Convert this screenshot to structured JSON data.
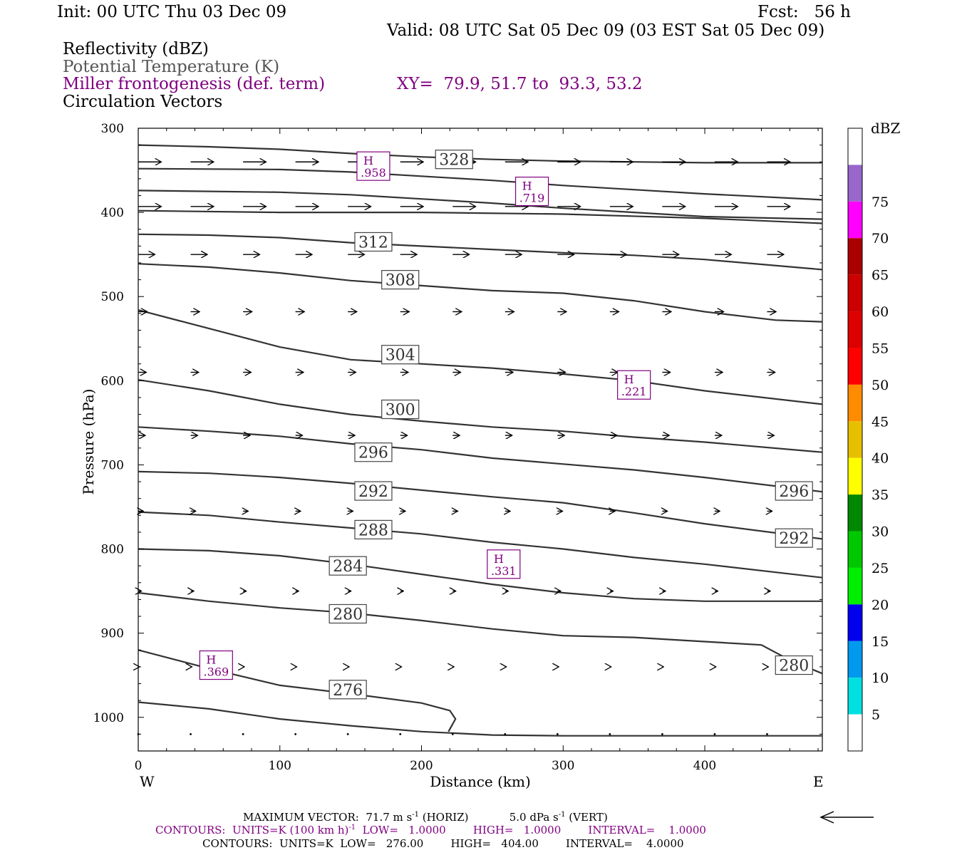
{
  "header": {
    "init": "Init: 00 UTC Thu 03 Dec 09",
    "fcst": "Fcst:   56 h",
    "valid": "Valid: 08 UTC Sat 05 Dec 09 (03 EST Sat 05 Dec 09)",
    "field1": "Reflectivity (dBZ)",
    "field2": "Potential Temperature (K)",
    "field3": "Miller frontogenesis (def. term)",
    "xy": "XY=  79.9, 51.7 to  93.3, 53.2",
    "field4": "Circulation Vectors"
  },
  "colors": {
    "field3": "#800080",
    "field2": "#555555",
    "contour": "#333333",
    "hmarker": "#800080"
  },
  "chart_data": {
    "type": "cross-section",
    "xlabel": "Distance (km)",
    "ylabel": "Pressure (hPa)",
    "xlim": [
      0,
      483
    ],
    "ylim": [
      300,
      1040
    ],
    "xticks": [
      0,
      100,
      200,
      300,
      400
    ],
    "yticks": [
      300,
      400,
      500,
      600,
      700,
      800,
      900,
      1000
    ],
    "x_end_left": "W",
    "x_end_right": "E",
    "theta_contours": [
      {
        "value": 276,
        "points": [
          [
            0,
            920
          ],
          [
            50,
            942
          ],
          [
            100,
            962
          ],
          [
            150,
            972
          ],
          [
            200,
            983
          ],
          [
            220,
            992
          ],
          [
            224,
            1002
          ],
          [
            219,
            1017
          ]
        ]
      },
      {
        "value": 276,
        "points": [
          [
            0,
            982
          ],
          [
            50,
            990
          ],
          [
            100,
            1002
          ],
          [
            150,
            1010
          ],
          [
            200,
            1017
          ],
          [
            250,
            1021
          ],
          [
            300,
            1022
          ],
          [
            400,
            1022
          ],
          [
            483,
            1022
          ]
        ]
      },
      {
        "value": 280,
        "points": [
          [
            0,
            852
          ],
          [
            50,
            862
          ],
          [
            100,
            870
          ],
          [
            150,
            876
          ],
          [
            200,
            885
          ],
          [
            250,
            895
          ],
          [
            300,
            903
          ],
          [
            350,
            905
          ],
          [
            400,
            910
          ],
          [
            440,
            914
          ],
          [
            460,
            932
          ],
          [
            483,
            948
          ]
        ]
      },
      {
        "value": 284,
        "points": [
          [
            0,
            800
          ],
          [
            50,
            802
          ],
          [
            100,
            808
          ],
          [
            150,
            818
          ],
          [
            200,
            830
          ],
          [
            250,
            842
          ],
          [
            300,
            852
          ],
          [
            350,
            859
          ],
          [
            400,
            862
          ],
          [
            483,
            862
          ]
        ]
      },
      {
        "value": 288,
        "points": [
          [
            0,
            756
          ],
          [
            50,
            760
          ],
          [
            100,
            768
          ],
          [
            150,
            775
          ],
          [
            200,
            782
          ],
          [
            250,
            792
          ],
          [
            300,
            800
          ],
          [
            350,
            810
          ],
          [
            400,
            818
          ],
          [
            483,
            834
          ]
        ]
      },
      {
        "value": 292,
        "points": [
          [
            0,
            708
          ],
          [
            50,
            710
          ],
          [
            100,
            715
          ],
          [
            150,
            722
          ],
          [
            200,
            730
          ],
          [
            250,
            738
          ],
          [
            300,
            745
          ],
          [
            350,
            757
          ],
          [
            400,
            770
          ],
          [
            483,
            788
          ]
        ]
      },
      {
        "value": 296,
        "points": [
          [
            0,
            655
          ],
          [
            50,
            660
          ],
          [
            100,
            666
          ],
          [
            150,
            675
          ],
          [
            200,
            682
          ],
          [
            250,
            692
          ],
          [
            300,
            699
          ],
          [
            350,
            706
          ],
          [
            400,
            715
          ],
          [
            483,
            732
          ]
        ]
      },
      {
        "value": 300,
        "points": [
          [
            0,
            599
          ],
          [
            50,
            612
          ],
          [
            100,
            628
          ],
          [
            150,
            640
          ],
          [
            200,
            648
          ],
          [
            250,
            655
          ],
          [
            300,
            660
          ],
          [
            350,
            667
          ],
          [
            400,
            673
          ],
          [
            483,
            685
          ]
        ]
      },
      {
        "value": 304,
        "points": [
          [
            0,
            516
          ],
          [
            50,
            538
          ],
          [
            100,
            560
          ],
          [
            150,
            575
          ],
          [
            200,
            580
          ],
          [
            250,
            585
          ],
          [
            300,
            592
          ],
          [
            350,
            600
          ],
          [
            400,
            612
          ],
          [
            483,
            628
          ]
        ]
      },
      {
        "value": 308,
        "points": [
          [
            0,
            461
          ],
          [
            50,
            465
          ],
          [
            100,
            472
          ],
          [
            150,
            481
          ],
          [
            200,
            487
          ],
          [
            250,
            493
          ],
          [
            300,
            496
          ],
          [
            350,
            505
          ],
          [
            400,
            518
          ],
          [
            450,
            528
          ],
          [
            483,
            530
          ]
        ]
      },
      {
        "value": 312,
        "points": [
          [
            0,
            426
          ],
          [
            50,
            427
          ],
          [
            100,
            430
          ],
          [
            150,
            436
          ],
          [
            200,
            440
          ],
          [
            250,
            444
          ],
          [
            300,
            448
          ],
          [
            350,
            451
          ],
          [
            400,
            456
          ],
          [
            483,
            468
          ]
        ]
      },
      {
        "value": 316,
        "points": [
          [
            0,
            398
          ],
          [
            100,
            400
          ],
          [
            200,
            400
          ],
          [
            300,
            402
          ],
          [
            400,
            407
          ],
          [
            483,
            413
          ]
        ]
      },
      {
        "value": 320,
        "points": [
          [
            0,
            374
          ],
          [
            100,
            376
          ],
          [
            150,
            379
          ],
          [
            200,
            384
          ],
          [
            250,
            389
          ],
          [
            300,
            395
          ],
          [
            350,
            400
          ],
          [
            400,
            405
          ],
          [
            483,
            408
          ]
        ]
      },
      {
        "value": 324,
        "points": [
          [
            0,
            348
          ],
          [
            100,
            349
          ],
          [
            150,
            352
          ],
          [
            200,
            357
          ],
          [
            250,
            362
          ],
          [
            300,
            368
          ],
          [
            350,
            373
          ],
          [
            400,
            378
          ],
          [
            483,
            385
          ]
        ]
      },
      {
        "value": 328,
        "points": [
          [
            0,
            320
          ],
          [
            50,
            322
          ],
          [
            100,
            325
          ],
          [
            150,
            330
          ],
          [
            200,
            334
          ],
          [
            250,
            337
          ],
          [
            300,
            339
          ],
          [
            350,
            340
          ],
          [
            400,
            341
          ],
          [
            483,
            341
          ]
        ]
      }
    ],
    "contour_labels": [
      {
        "text": "328",
        "x": 223,
        "p": 337
      },
      {
        "text": "312",
        "x": 166,
        "p": 435
      },
      {
        "text": "308",
        "x": 185,
        "p": 480
      },
      {
        "text": "304",
        "x": 185,
        "p": 569
      },
      {
        "text": "300",
        "x": 185,
        "p": 634
      },
      {
        "text": "296",
        "x": 166,
        "p": 685
      },
      {
        "text": "292",
        "x": 166,
        "p": 731
      },
      {
        "text": "288",
        "x": 166,
        "p": 777
      },
      {
        "text": "284",
        "x": 148,
        "p": 820
      },
      {
        "text": "280",
        "x": 148,
        "p": 877
      },
      {
        "text": "276",
        "x": 148,
        "p": 967
      },
      {
        "text": "296",
        "x": 463,
        "p": 731
      },
      {
        "text": "292",
        "x": 463,
        "p": 787
      },
      {
        "text": "280",
        "x": 463,
        "p": 938
      }
    ],
    "frontogenesis_maxima": [
      {
        "label": "H",
        "value": ".958",
        "x": 166,
        "p": 345
      },
      {
        "label": "H",
        "value": ".719",
        "x": 278,
        "p": 375
      },
      {
        "label": "H",
        "value": ".221",
        "x": 350,
        "p": 605
      },
      {
        "label": "H",
        "value": ".331",
        "x": 258,
        "p": 818
      },
      {
        "label": "H",
        "value": ".369",
        "x": 55,
        "p": 938
      }
    ],
    "vector_levels": [
      {
        "p": 340,
        "u": 72,
        "w": 0
      },
      {
        "p": 393,
        "u": 72,
        "w": 0
      },
      {
        "p": 450,
        "u": 52,
        "w": 0
      },
      {
        "p": 518,
        "u": 28,
        "w": 0
      },
      {
        "p": 590,
        "u": 25,
        "w": 0
      },
      {
        "p": 665,
        "u": 22,
        "w": 0
      },
      {
        "p": 755,
        "u": 16,
        "w": 0
      },
      {
        "p": 850,
        "u": 10,
        "w": 0
      },
      {
        "p": 940,
        "u": 4,
        "w": 0
      },
      {
        "p": 1020,
        "u": 2,
        "w": 0
      }
    ],
    "vector_x_positions": [
      0,
      37,
      74,
      111,
      148,
      185,
      222,
      259,
      296,
      333,
      370,
      407,
      444
    ],
    "colorbar": {
      "unit": "dBZ",
      "levels": [
        {
          "label": "",
          "color": "#ffffff"
        },
        {
          "label": "5",
          "color": "#00e0e0"
        },
        {
          "label": "10",
          "color": "#0099ee"
        },
        {
          "label": "15",
          "color": "#0000ee"
        },
        {
          "label": "20",
          "color": "#00ee00"
        },
        {
          "label": "25",
          "color": "#00c800"
        },
        {
          "label": "30",
          "color": "#008800"
        },
        {
          "label": "35",
          "color": "#ffff00"
        },
        {
          "label": "40",
          "color": "#e6c000"
        },
        {
          "label": "45",
          "color": "#ff8c00"
        },
        {
          "label": "50",
          "color": "#ff0000"
        },
        {
          "label": "55",
          "color": "#dd0000"
        },
        {
          "label": "60",
          "color": "#cc0000"
        },
        {
          "label": "65",
          "color": "#aa0000"
        },
        {
          "label": "70",
          "color": "#ff00ff"
        },
        {
          "label": "75",
          "color": "#9966cc"
        },
        {
          "label": "",
          "color": "#ffffff"
        }
      ]
    }
  },
  "footer": {
    "maxvec": "MAXIMUM VECTOR:  71.7 m s",
    "maxvec_sup": "-1",
    "maxvec_mid": " (HORIZ)            5.0 dPa s",
    "maxvec_sup2": "-1",
    "maxvec_end": " (VERT)",
    "contours1_a": "CONTOURS:  UNITS=K (100 km h)",
    "contours1_sup": "-1",
    "contours1_b": "  LOW=   1.0000        HIGH=   1.0000        INTERVAL=    1.0000",
    "contours2": "CONTOURS:  UNITS=K  LOW=   276.00        HIGH=   404.00        INTERVAL=    4.0000"
  }
}
